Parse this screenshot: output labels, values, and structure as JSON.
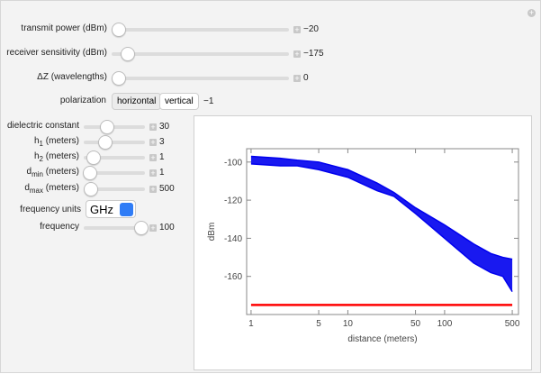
{
  "controls": [
    {
      "label": "transmit power (dBm)",
      "value": "−20"
    },
    {
      "label": "receiver sensitivity (dBm)",
      "value": "−175"
    },
    {
      "label": "ΔZ (wavelengths)",
      "value": "0"
    }
  ],
  "polarization": {
    "label": "polarization",
    "options": [
      "horizontal",
      "vertical"
    ],
    "value": "−1"
  },
  "left_controls": [
    {
      "label": "dielectric constant",
      "value": "30"
    },
    {
      "label": "h",
      "sub": "1",
      "unit": " (meters)",
      "value": "3"
    },
    {
      "label": "h",
      "sub": "2",
      "unit": " (meters)",
      "value": "1"
    },
    {
      "label": "d",
      "sub": "min",
      "unit": " (meters)",
      "value": "1"
    },
    {
      "label": "d",
      "sub": "max",
      "unit": " (meters)",
      "value": "500"
    }
  ],
  "frequency_units": {
    "label": "frequency units",
    "value": "GHz"
  },
  "frequency": {
    "label": "frequency",
    "value": "100"
  },
  "chart_data": {
    "type": "line",
    "xlabel": "distance (meters)",
    "ylabel": "dBm",
    "xscale": "log",
    "x": [
      1,
      2,
      3,
      5,
      10,
      20,
      30,
      50,
      100,
      200,
      300,
      400,
      500
    ],
    "series": [
      {
        "color": "#0000ee",
        "values": [
          -97,
          -98,
          -99,
          -100,
          -104,
          -111,
          -116,
          -124,
          -133,
          -143,
          -148,
          -150,
          -151
        ]
      },
      {
        "color": "#0000ee",
        "values": [
          -101,
          -102,
          -102,
          -104,
          -108,
          -115,
          -118,
          -127,
          -140,
          -153,
          -158,
          -160,
          -168
        ]
      }
    ],
    "threshold": {
      "value": -175,
      "color": "#ff0000",
      "xrange": [
        1,
        500
      ]
    },
    "xlim": [
      0.9,
      580
    ],
    "xticks": [
      1,
      5,
      10,
      50,
      100,
      500
    ],
    "ylim": [
      -180,
      -93
    ],
    "yticks": [
      -100,
      -120,
      -140,
      -160
    ]
  }
}
